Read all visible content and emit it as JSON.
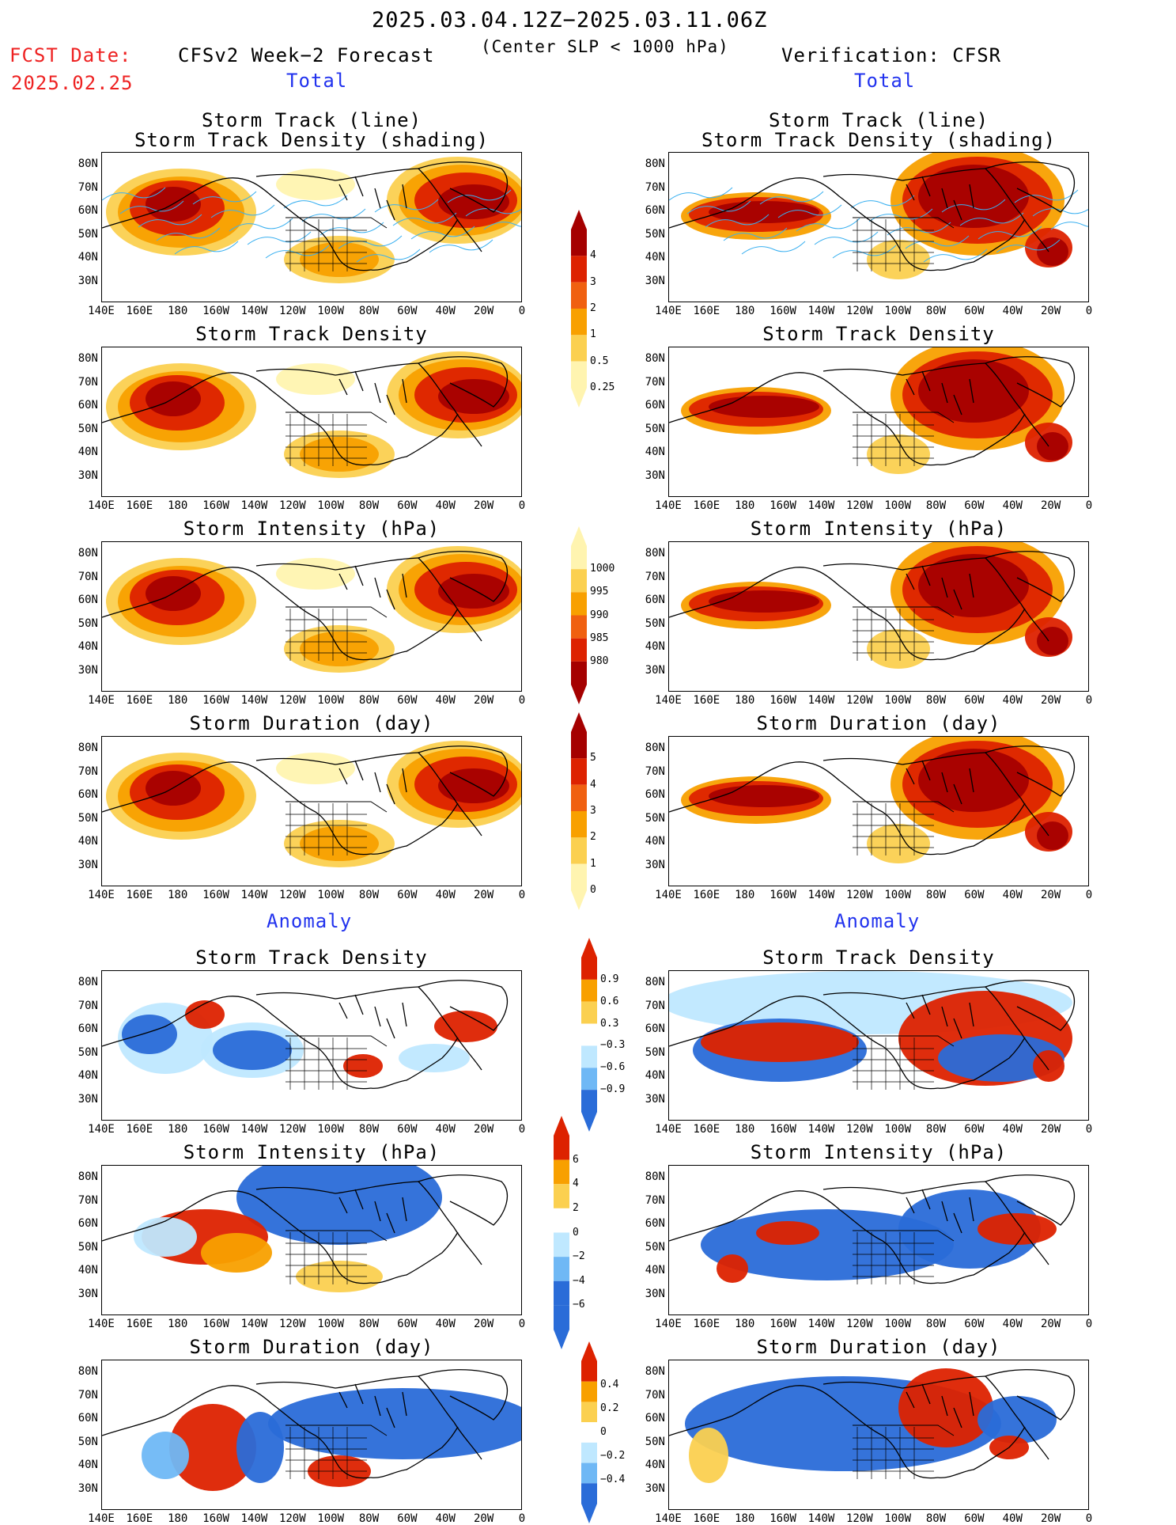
{
  "header": {
    "period": "2025.03.04.12Z−2025.03.11.06Z",
    "condition": "(Center SLP < 1000 hPa)",
    "fcst_label": "FCST Date:",
    "fcst_date": "2025.02.25",
    "left_source": "CFSv2 Week−2 Forecast",
    "right_source": "Verification: CFSR",
    "total_label": "Total",
    "anomaly_label": "Anomaly"
  },
  "map_axes": {
    "lat_labels": [
      "80N",
      "70N",
      "60N",
      "50N",
      "40N",
      "30N"
    ],
    "lon_labels": [
      "140E",
      "160E",
      "180",
      "160W",
      "140W",
      "120W",
      "100W",
      "80W",
      "60W",
      "40W",
      "20W",
      "0"
    ]
  },
  "panels": {
    "total": [
      {
        "title1": "Storm Track (line)",
        "title2": "Storm Track Density (shading)"
      },
      {
        "title1": "Storm Track Density",
        "title2": ""
      },
      {
        "title1": "Storm Intensity (hPa)",
        "title2": ""
      },
      {
        "title1": "Storm Duration (day)",
        "title2": ""
      }
    ],
    "anomaly": [
      {
        "title1": "Storm Track Density",
        "title2": ""
      },
      {
        "title1": "Storm Intensity (hPa)",
        "title2": ""
      },
      {
        "title1": "Storm Duration (day)",
        "title2": ""
      }
    ]
  },
  "colorbars": {
    "density_total": [
      "4",
      "3",
      "2",
      "1",
      "0.5",
      "0.25"
    ],
    "intensity_total": [
      "1000",
      "995",
      "990",
      "985",
      "980"
    ],
    "duration_total": [
      "5",
      "4",
      "3",
      "2",
      "1",
      "0"
    ],
    "density_anom": [
      "0.9",
      "0.6",
      "0.3",
      "−0.3",
      "−0.6",
      "−0.9"
    ],
    "intensity_anom": [
      "6",
      "4",
      "2",
      "0",
      "−2",
      "−4",
      "−6"
    ],
    "duration_anom": [
      "0.4",
      "0.2",
      "0",
      "−0.2",
      "−0.4"
    ]
  },
  "colors": {
    "dark_red": "#a50000",
    "red": "#dd2200",
    "orange_red": "#f06010",
    "orange": "#f8a000",
    "light_orange": "#fbd050",
    "pale_yellow": "#fff4b0",
    "light_blue": "#bfe8ff",
    "mid_blue": "#6fb8f5",
    "blue": "#2a6cd8",
    "track_line": "#3ab0f0"
  }
}
